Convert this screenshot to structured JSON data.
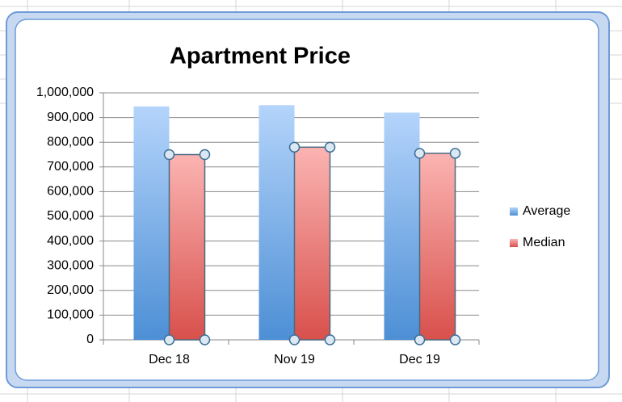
{
  "chart_data": {
    "type": "bar",
    "title": "Apartment Price",
    "categories": [
      "Dec 18",
      "Nov 19",
      "Dec 19"
    ],
    "series": [
      {
        "name": "Average",
        "color": "#5b9bd5",
        "values": [
          945000,
          950000,
          920000
        ]
      },
      {
        "name": "Median",
        "color": "#e05a55",
        "values": [
          750000,
          780000,
          755000
        ]
      }
    ],
    "ylim": [
      0,
      1000000
    ],
    "yticks": [
      0,
      {
        "value": 100000,
        "label": "100,000"
      },
      {
        "value": 200000,
        "label": "200,000"
      },
      {
        "value": 300000,
        "label": "300,000"
      },
      {
        "value": 400000,
        "label": "400,000"
      },
      {
        "value": 500000,
        "label": "500,000"
      },
      {
        "value": 600000,
        "label": "600,000"
      },
      {
        "value": 700000,
        "label": "700,000"
      },
      {
        "value": 800000,
        "label": "800,000"
      },
      {
        "value": 900000,
        "label": "900,000"
      },
      {
        "value": 1000000,
        "label": "1,000,000"
      }
    ],
    "grid": true,
    "legend": "right"
  }
}
